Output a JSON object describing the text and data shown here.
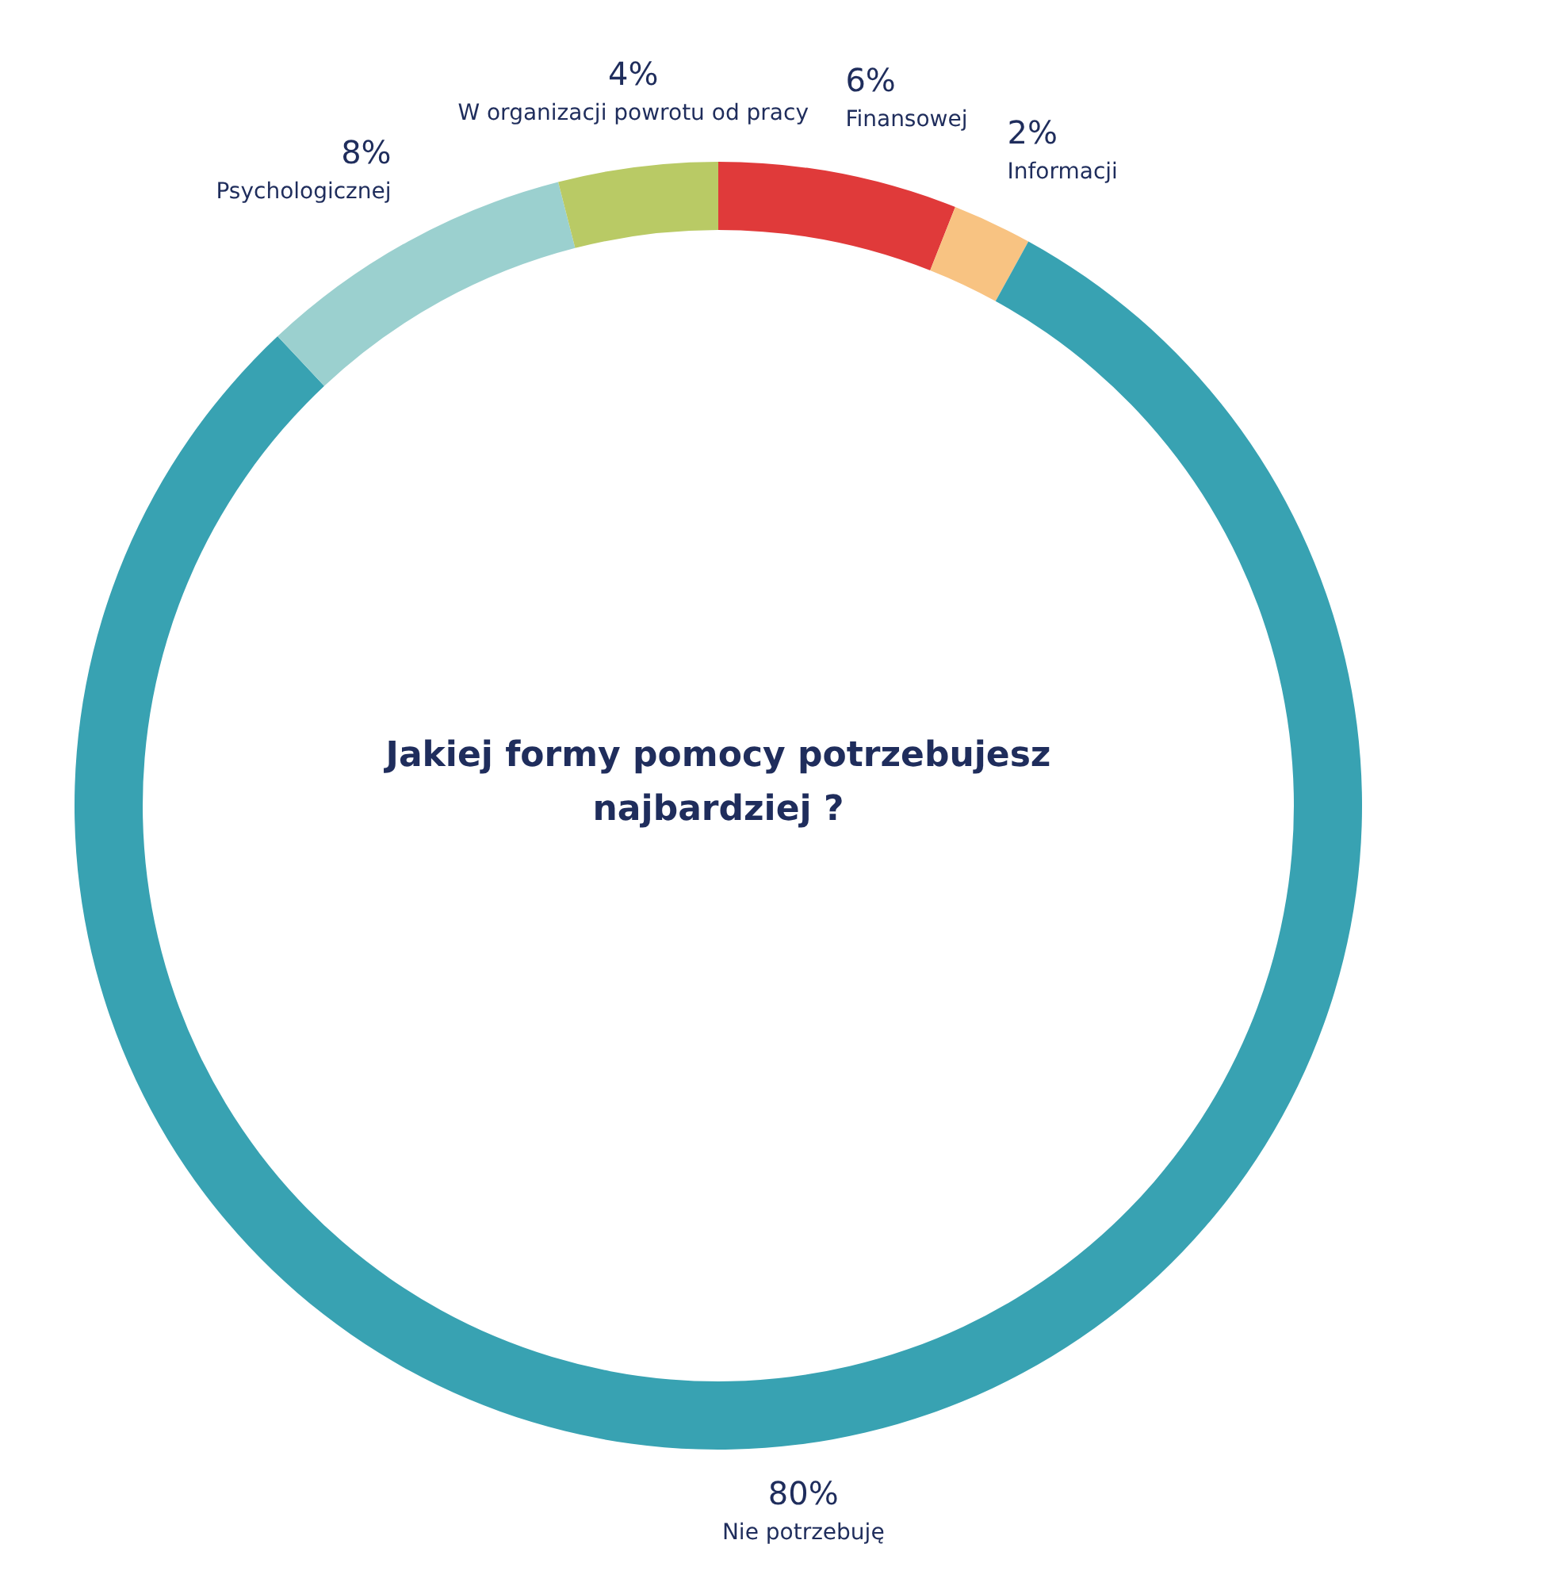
{
  "chart_data": {
    "type": "donut",
    "title": "Jakiej formy pomocy potrzebujesz najbardziej ?",
    "categories": [
      "Finansowej",
      "Informacji",
      "Nie potrzebuję",
      "Psychologicznej",
      "W organizacji powrotu od pracy"
    ],
    "values": [
      6,
      2,
      80,
      8,
      4
    ],
    "colors": [
      "#e03a3a",
      "#f8c382",
      "#38a2b2",
      "#9bd0cf",
      "#b9ca65"
    ],
    "value_labels": [
      "6%",
      "2%",
      "80%",
      "8%",
      "4%"
    ],
    "legend": false
  }
}
